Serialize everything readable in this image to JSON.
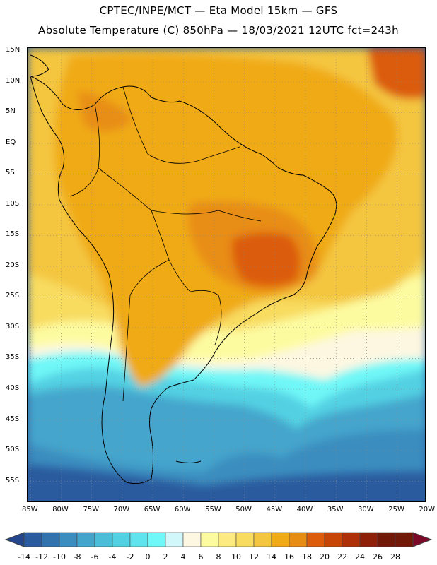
{
  "header": {
    "line1": "CPTEC/INPE/MCT —  Eta Model 15km — GFS",
    "line2": "Absolute Temperature (C) 850hPa — 18/03/2021 12UTC fct=243h"
  },
  "map": {
    "lat_labels": [
      "15N",
      "10N",
      "5N",
      "EQ",
      "5S",
      "10S",
      "15S",
      "20S",
      "25S",
      "30S",
      "35S",
      "40S",
      "45S",
      "50S",
      "55S"
    ],
    "lon_labels": [
      "85W",
      "80W",
      "75W",
      "70W",
      "65W",
      "60W",
      "55W",
      "50W",
      "45W",
      "40W",
      "35W",
      "30W",
      "25W",
      "20W"
    ],
    "lat_range": [
      15.5,
      -58.5
    ],
    "lon_range": [
      -85.5,
      -20.2
    ]
  },
  "colorbar": {
    "labels": [
      "-14",
      "-12",
      "-10",
      "-8",
      "-6",
      "-4",
      "-2",
      "0",
      "2",
      "4",
      "6",
      "8",
      "10",
      "12",
      "14",
      "16",
      "18",
      "20",
      "22",
      "24",
      "26",
      "28"
    ],
    "colors": [
      "#24468c",
      "#2a5b9e",
      "#3273ae",
      "#3b8dbf",
      "#44a5cc",
      "#4cbdd8",
      "#52d1e3",
      "#5fe4ee",
      "#70f7f7",
      "#d1f7fb",
      "#fdf7e1",
      "#fdfba0",
      "#fdea80",
      "#f8dc60",
      "#f4c640",
      "#f0aa18",
      "#e88d14",
      "#dc5c0c",
      "#c84508",
      "#ae3008",
      "#8e1f08",
      "#721808",
      "#7a0a28"
    ]
  }
}
